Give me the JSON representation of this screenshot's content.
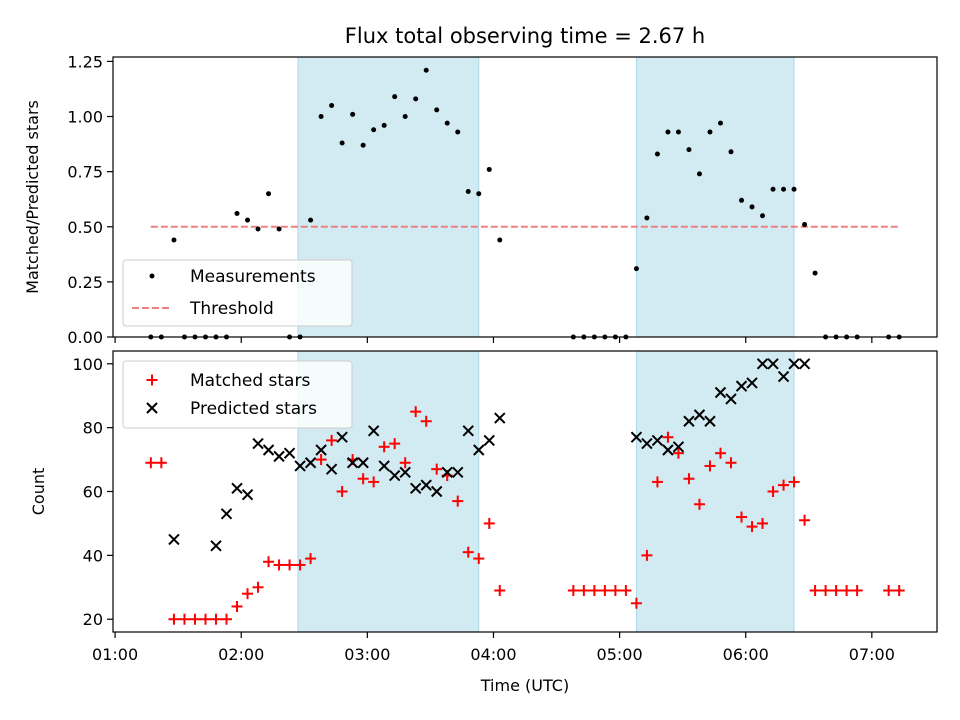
{
  "chart_data": [
    {
      "type": "scatter",
      "title": "Flux total observing time = 2.67 h",
      "ylabel": "Matched/Predicted stars",
      "ylim": [
        0,
        1.27
      ],
      "yticks": [
        "0.00",
        "0.25",
        "0.50",
        "0.75",
        "1.00",
        "1.25"
      ],
      "ytick_values": [
        0,
        0.25,
        0.5,
        0.75,
        1.0,
        1.25
      ],
      "xlim": [
        "00:59",
        "07:31"
      ],
      "xticks_unlabeled": [
        "01:00",
        "02:00",
        "03:00",
        "04:00",
        "05:00",
        "06:00",
        "07:00"
      ],
      "grid": false,
      "legend_position": "lower-left",
      "highlight_spans": [
        {
          "start": "02:27",
          "end": "03:53",
          "color": "#add8e6"
        },
        {
          "start": "05:08",
          "end": "06:23",
          "color": "#add8e6"
        }
      ],
      "series": [
        {
          "name": "Measurements",
          "marker": "dot",
          "color": "#000000",
          "x": [
            "01:17",
            "01:22",
            "01:28",
            "01:33",
            "01:38",
            "01:43",
            "01:48",
            "01:53",
            "01:58",
            "02:03",
            "02:08",
            "02:13",
            "02:18",
            "02:23",
            "02:28",
            "02:33",
            "02:38",
            "02:43",
            "02:48",
            "02:53",
            "02:58",
            "03:03",
            "03:08",
            "03:13",
            "03:18",
            "03:23",
            "03:28",
            "03:33",
            "03:38",
            "03:43",
            "03:48",
            "03:53",
            "03:58",
            "04:03",
            "04:38",
            "04:43",
            "04:48",
            "04:53",
            "04:58",
            "05:03",
            "05:08",
            "05:13",
            "05:18",
            "05:23",
            "05:28",
            "05:33",
            "05:38",
            "05:43",
            "05:48",
            "05:53",
            "05:58",
            "06:03",
            "06:08",
            "06:13",
            "06:18",
            "06:23",
            "06:28",
            "06:33",
            "06:38",
            "06:43",
            "06:48",
            "06:53",
            "07:08",
            "07:13"
          ],
          "y": [
            0.0,
            0.0,
            0.44,
            0.0,
            0.0,
            0.0,
            0.0,
            0.0,
            0.56,
            0.53,
            0.49,
            0.65,
            0.49,
            0.0,
            0.0,
            0.53,
            1.0,
            1.05,
            0.88,
            1.01,
            0.87,
            0.94,
            0.96,
            1.09,
            1.0,
            1.08,
            1.21,
            1.03,
            0.97,
            0.93,
            0.66,
            0.65,
            0.76,
            0.44,
            0.0,
            0.0,
            0.0,
            0.0,
            0.0,
            0.0,
            0.31,
            0.54,
            0.83,
            0.93,
            0.93,
            0.85,
            0.74,
            0.93,
            0.97,
            0.84,
            0.62,
            0.59,
            0.55,
            0.67,
            0.67,
            0.67,
            0.51,
            0.29,
            0.0,
            0.0,
            0.0,
            0.0,
            0.0,
            0.0
          ]
        },
        {
          "name": "Threshold",
          "line_style": "dashed",
          "color": "#f08080",
          "x": [
            "01:17",
            "07:13"
          ],
          "y": [
            0.5,
            0.5
          ]
        }
      ]
    },
    {
      "type": "scatter",
      "xlabel": "Time (UTC)",
      "ylabel": "Count",
      "ylim": [
        16,
        104
      ],
      "yticks": [
        "20",
        "40",
        "60",
        "80",
        "100"
      ],
      "ytick_values": [
        20,
        40,
        60,
        80,
        100
      ],
      "xlim": [
        "00:59",
        "07:31"
      ],
      "xticks": [
        "01:00",
        "02:00",
        "03:00",
        "04:00",
        "05:00",
        "06:00",
        "07:00"
      ],
      "grid": false,
      "legend_position": "upper-left",
      "highlight_spans": [
        {
          "start": "02:27",
          "end": "03:53",
          "color": "#add8e6"
        },
        {
          "start": "05:08",
          "end": "06:23",
          "color": "#add8e6"
        }
      ],
      "series": [
        {
          "name": "Matched stars",
          "marker": "plus",
          "color": "#ff0000",
          "x": [
            "01:17",
            "01:22",
            "01:28",
            "01:33",
            "01:38",
            "01:43",
            "01:48",
            "01:53",
            "01:58",
            "02:03",
            "02:08",
            "02:13",
            "02:18",
            "02:23",
            "02:28",
            "02:33",
            "02:38",
            "02:43",
            "02:48",
            "02:53",
            "02:58",
            "03:03",
            "03:08",
            "03:13",
            "03:18",
            "03:23",
            "03:28",
            "03:33",
            "03:38",
            "03:43",
            "03:48",
            "03:53",
            "03:58",
            "04:03",
            "04:38",
            "04:43",
            "04:48",
            "04:53",
            "04:58",
            "05:03",
            "05:08",
            "05:13",
            "05:18",
            "05:23",
            "05:28",
            "05:33",
            "05:38",
            "05:43",
            "05:48",
            "05:53",
            "05:58",
            "06:03",
            "06:08",
            "06:13",
            "06:18",
            "06:23",
            "06:28",
            "06:33",
            "06:38",
            "06:43",
            "06:48",
            "06:53",
            "07:08",
            "07:13"
          ],
          "y": [
            69,
            69,
            20,
            20,
            20,
            20,
            20,
            20,
            24,
            28,
            30,
            38,
            37,
            37,
            37,
            39,
            70,
            76,
            60,
            70,
            64,
            63,
            74,
            75,
            69,
            85,
            82,
            67,
            65,
            57,
            41,
            39,
            50,
            29,
            29,
            29,
            29,
            29,
            29,
            29,
            25,
            40,
            63,
            77,
            72,
            64,
            56,
            68,
            72,
            69,
            52,
            49,
            50,
            60,
            62,
            63,
            51,
            29,
            29,
            29,
            29,
            29,
            29,
            29
          ]
        },
        {
          "name": "Predicted stars",
          "marker": "x",
          "color": "#000000",
          "x": [
            "01:28",
            "01:48",
            "01:53",
            "01:58",
            "02:03",
            "02:08",
            "02:13",
            "02:18",
            "02:23",
            "02:28",
            "02:33",
            "02:38",
            "02:43",
            "02:48",
            "02:53",
            "02:58",
            "03:03",
            "03:08",
            "03:13",
            "03:18",
            "03:23",
            "03:28",
            "03:33",
            "03:38",
            "03:43",
            "03:48",
            "03:53",
            "03:58",
            "04:03",
            "05:08",
            "05:13",
            "05:18",
            "05:23",
            "05:28",
            "05:33",
            "05:38",
            "05:43",
            "05:48",
            "05:53",
            "05:58",
            "06:03",
            "06:08",
            "06:13",
            "06:18",
            "06:23",
            "06:28"
          ],
          "y": [
            45,
            43,
            53,
            61,
            59,
            75,
            73,
            71,
            72,
            68,
            69,
            73,
            67,
            77,
            69,
            69,
            79,
            68,
            65,
            66,
            61,
            62,
            60,
            66,
            66,
            79,
            73,
            76,
            83,
            77,
            75,
            76,
            73,
            74,
            82,
            84,
            82,
            91,
            89,
            93,
            94,
            100,
            100,
            96,
            100,
            100
          ]
        }
      ]
    }
  ]
}
